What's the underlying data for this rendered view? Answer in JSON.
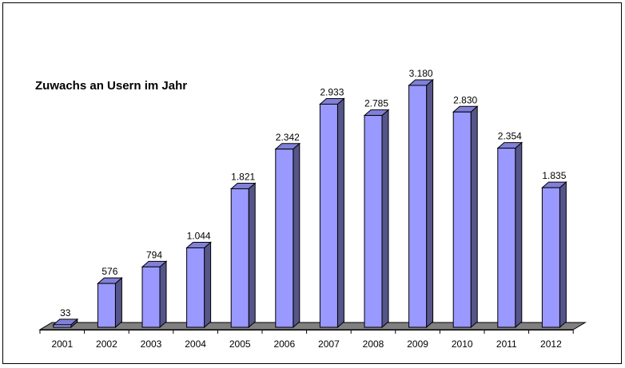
{
  "chart_data": {
    "type": "bar",
    "title": "Zuwachs an Usern im Jahr",
    "xlabel": "",
    "ylabel": "",
    "categories": [
      "2001",
      "2002",
      "2003",
      "2004",
      "2005",
      "2006",
      "2007",
      "2008",
      "2009",
      "2010",
      "2011",
      "2012"
    ],
    "values": [
      33,
      576,
      794,
      1044,
      1821,
      2342,
      2933,
      2785,
      3180,
      2830,
      2354,
      1835
    ],
    "value_labels": [
      "33",
      "576",
      "794",
      "1.044",
      "1.821",
      "2.342",
      "2.933",
      "2.785",
      "3.180",
      "2.830",
      "2.354",
      "1.835"
    ],
    "ylim": [
      0,
      3300
    ],
    "grid": false,
    "legend": "none",
    "colors": {
      "bar_front": "#9999ff",
      "bar_side": "#55558a",
      "bar_top": "#8080d8",
      "floor": "#808080"
    }
  }
}
